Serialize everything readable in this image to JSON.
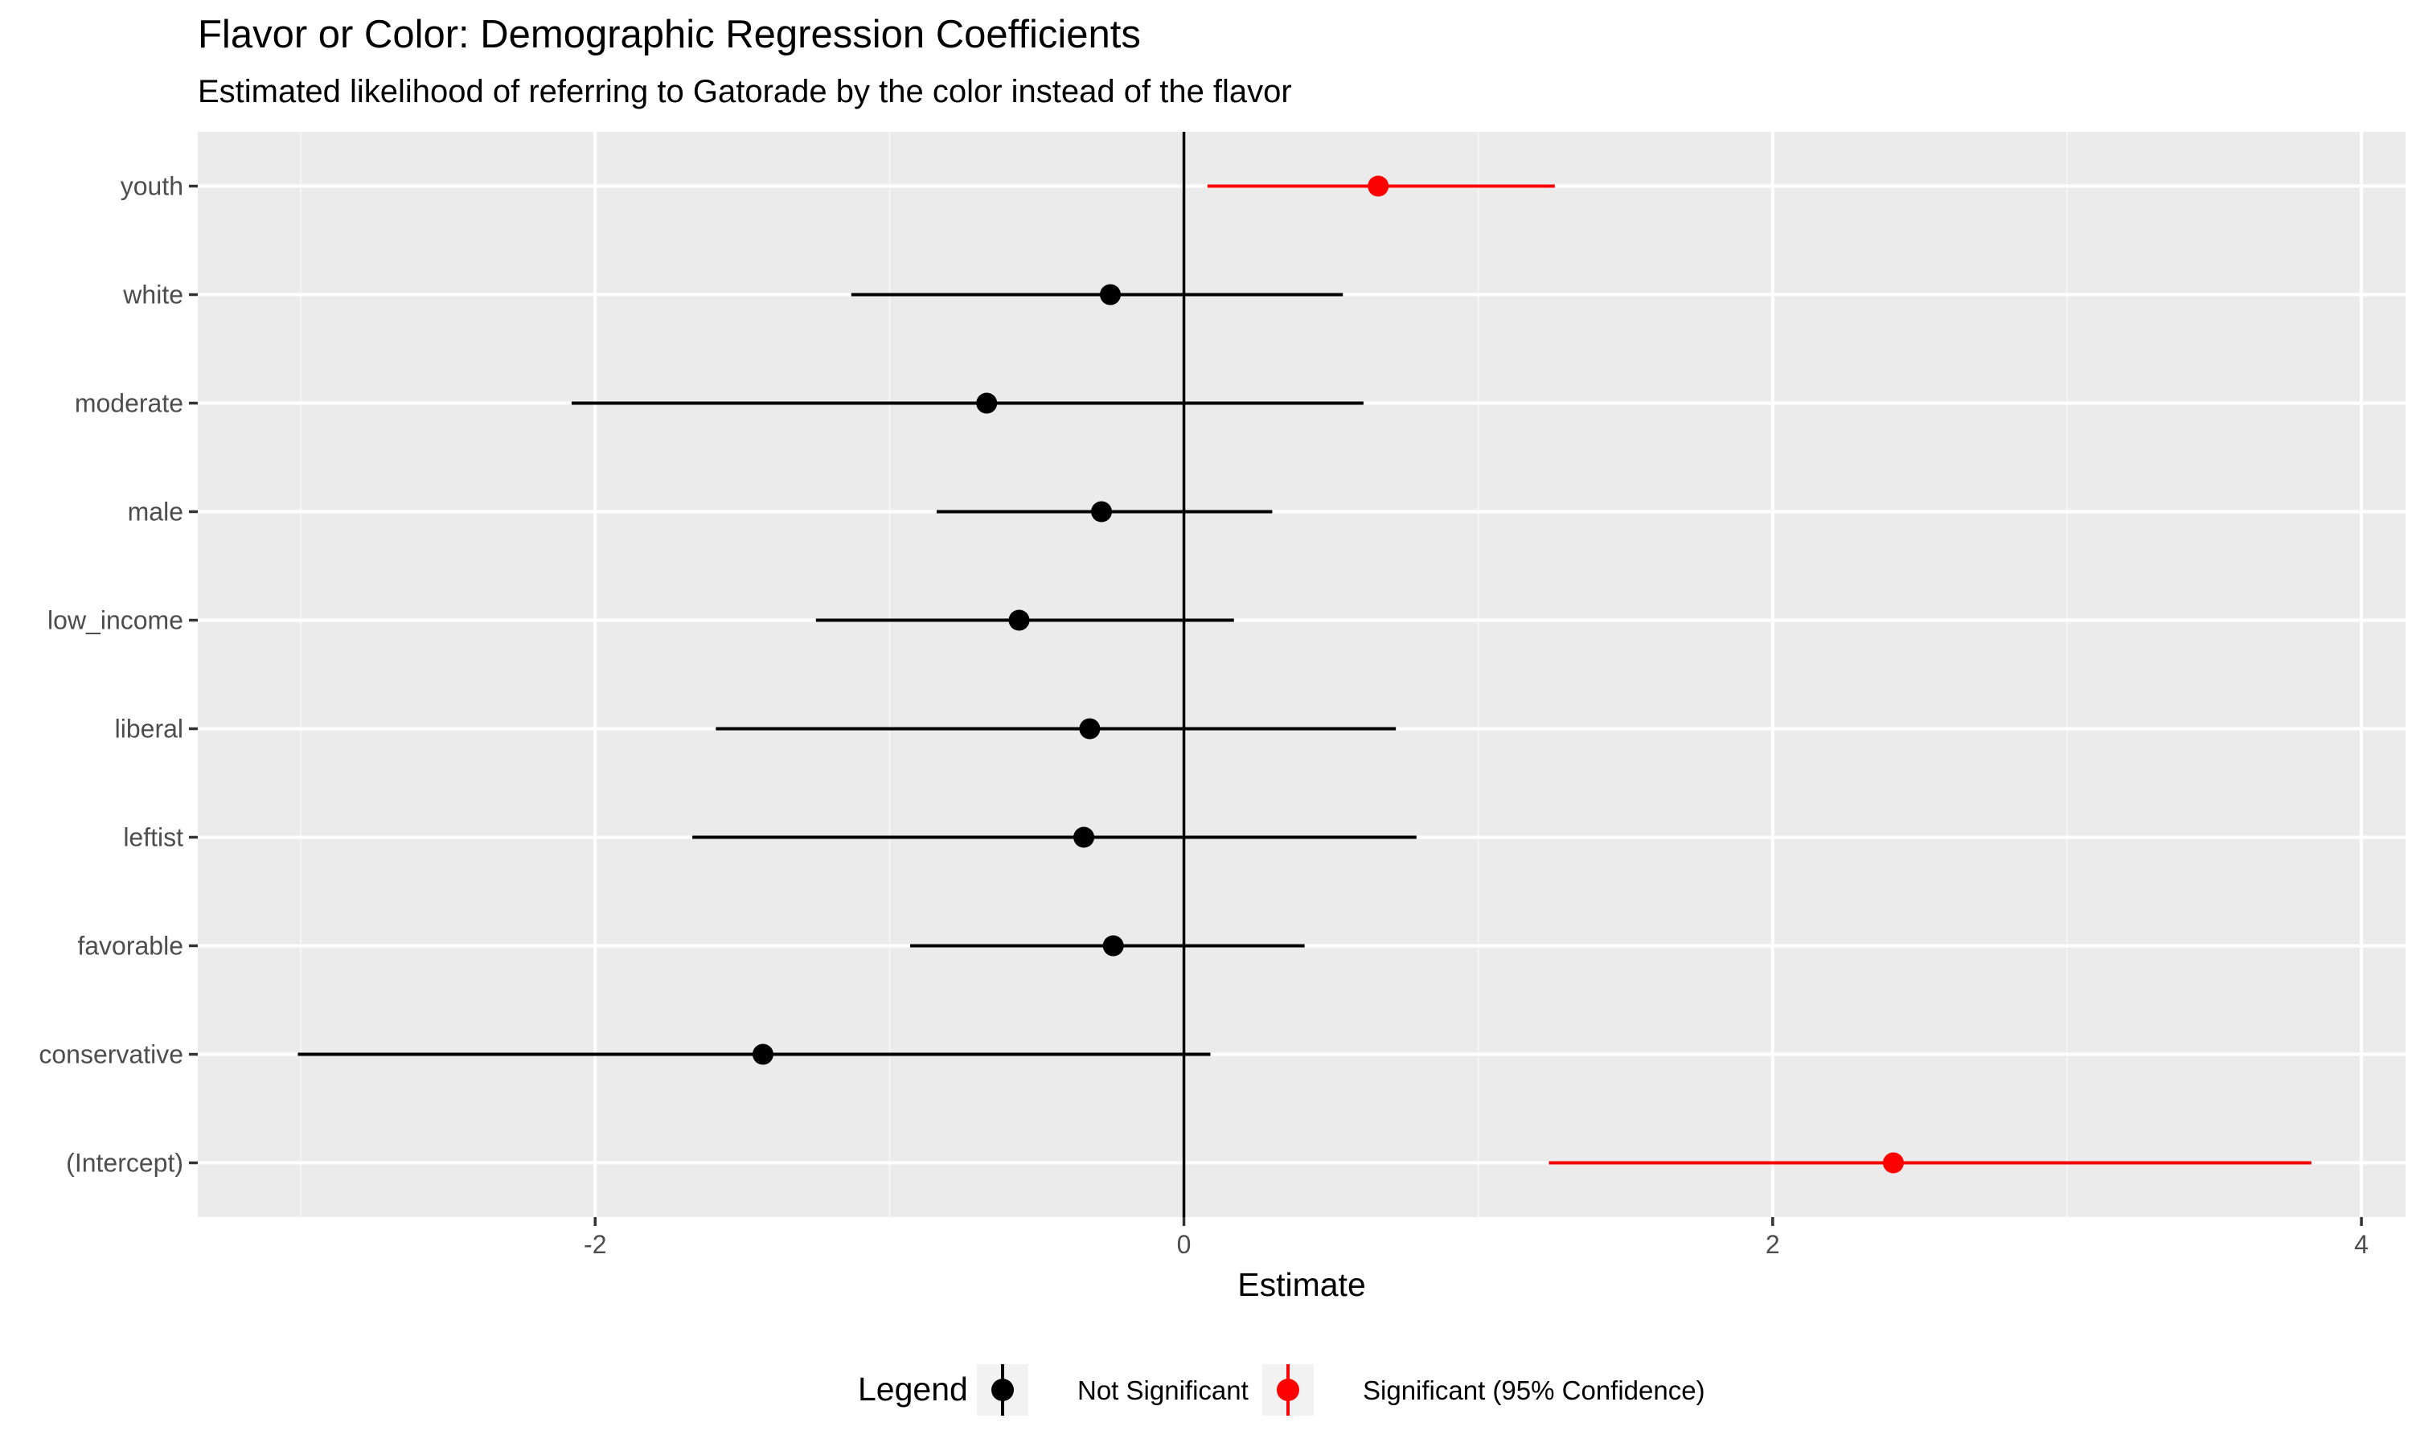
{
  "chart_data": {
    "type": "scatter",
    "title": "Flavor or Color: Demographic Regression Coefficients",
    "subtitle": "Estimated likelihood of referring to Gatorade by the color instead of the flavor",
    "xlabel": "Estimate",
    "ylabel": "",
    "xlim": [
      -3.35,
      4.15
    ],
    "x_ticks": [
      -2,
      0,
      2,
      4
    ],
    "x_tick_labels": [
      "-2",
      "0",
      "2",
      "4"
    ],
    "grid": true,
    "reference_line": {
      "x": 0,
      "color": "#000000"
    },
    "categories": [
      "youth",
      "white",
      "moderate",
      "male",
      "low_income",
      "liberal",
      "leftist",
      "favorable",
      "conservative",
      "(Intercept)"
    ],
    "points": [
      {
        "term": "youth",
        "estimate": 0.66,
        "conf_low": 0.08,
        "conf_high": 1.26,
        "significance": "Significant (95% Confidence)"
      },
      {
        "term": "white",
        "estimate": -0.25,
        "conf_low": -1.13,
        "conf_high": 0.54,
        "significance": "Not Significant"
      },
      {
        "term": "moderate",
        "estimate": -0.67,
        "conf_low": -2.08,
        "conf_high": 0.61,
        "significance": "Not Significant"
      },
      {
        "term": "male",
        "estimate": -0.28,
        "conf_low": -0.84,
        "conf_high": 0.3,
        "significance": "Not Significant"
      },
      {
        "term": "low_income",
        "estimate": -0.56,
        "conf_low": -1.25,
        "conf_high": 0.17,
        "significance": "Not Significant"
      },
      {
        "term": "liberal",
        "estimate": -0.32,
        "conf_low": -1.59,
        "conf_high": 0.72,
        "significance": "Not Significant"
      },
      {
        "term": "leftist",
        "estimate": -0.34,
        "conf_low": -1.67,
        "conf_high": 0.79,
        "significance": "Not Significant"
      },
      {
        "term": "favorable",
        "estimate": -0.24,
        "conf_low": -0.93,
        "conf_high": 0.41,
        "significance": "Not Significant"
      },
      {
        "term": "conservative",
        "estimate": -1.43,
        "conf_low": -3.01,
        "conf_high": 0.09,
        "significance": "Not Significant"
      },
      {
        "term": "(Intercept)",
        "estimate": 2.41,
        "conf_low": 1.24,
        "conf_high": 3.83,
        "significance": "Significant (95% Confidence)"
      }
    ],
    "legend": {
      "title": "Legend",
      "position": "bottom",
      "entries": [
        {
          "label": "Not Significant",
          "color": "#000000"
        },
        {
          "label": "Significant (95% Confidence)",
          "color": "#ff0000"
        }
      ]
    },
    "colors": {
      "panel_background": "#ebebeb",
      "grid_major": "#ffffff",
      "grid_minor": "#f5f5f5",
      "tick_text": "#4d4d4d",
      "tick_mark": "#333333"
    }
  }
}
